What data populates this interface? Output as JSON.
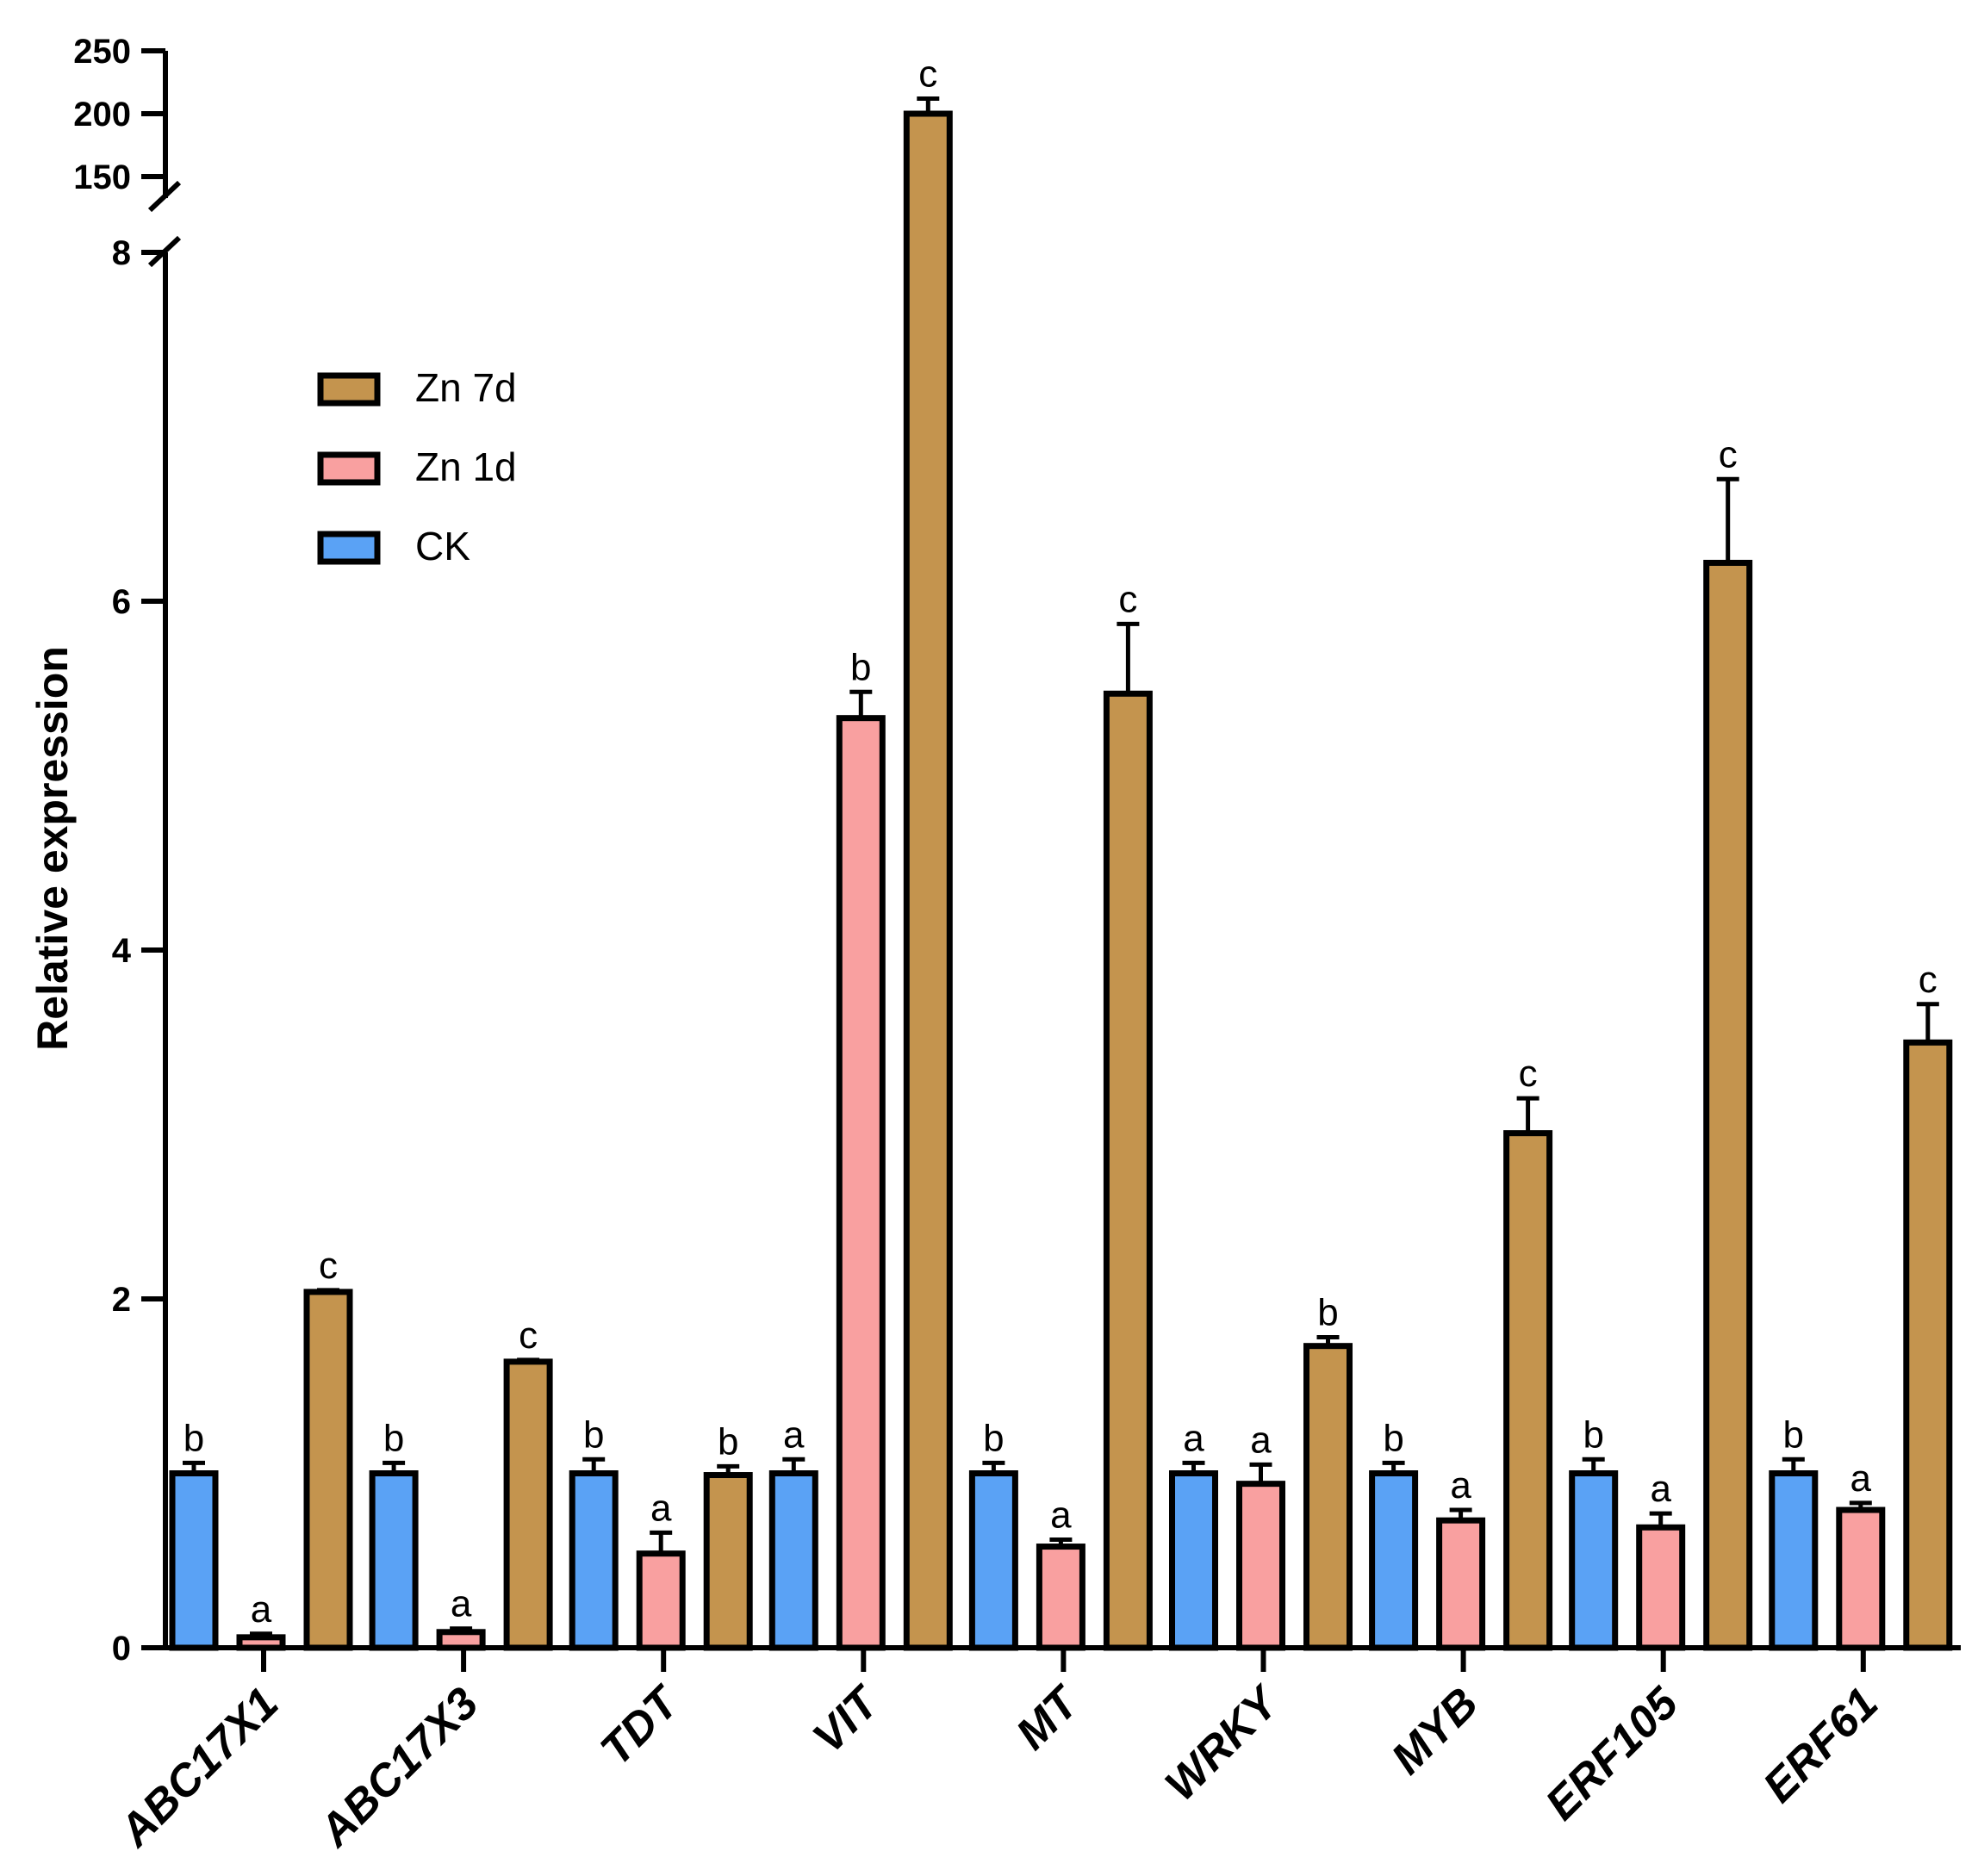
{
  "chart_data": {
    "type": "bar",
    "ylabel": "Relative expression",
    "xlabel": "",
    "categories": [
      "ABC17X1",
      "ABC17X3",
      "TDT",
      "VIT",
      "MT",
      "WRKY",
      "MYB",
      "ERF105",
      "ERF61"
    ],
    "series": [
      {
        "name": "CK",
        "color": "#5aa2f5",
        "values": [
          1.0,
          1.0,
          1.0,
          1.0,
          1.0,
          1.0,
          1.0,
          1.0,
          1.0
        ],
        "errors": [
          0.06,
          0.06,
          0.08,
          0.08,
          0.06,
          0.06,
          0.06,
          0.08,
          0.08
        ],
        "letters": [
          "b",
          "b",
          "b",
          "a",
          "b",
          "a",
          "b",
          "b",
          "b"
        ]
      },
      {
        "name": "Zn 1d",
        "color": "#f9a0a0",
        "values": [
          0.06,
          0.09,
          0.54,
          5.33,
          0.58,
          0.94,
          0.73,
          0.69,
          0.79
        ],
        "errors": [
          0.02,
          0.02,
          0.12,
          0.15,
          0.04,
          0.11,
          0.06,
          0.08,
          0.04
        ],
        "letters": [
          "a",
          "a",
          "a",
          "b",
          "a",
          "a",
          "a",
          "a",
          "a"
        ]
      },
      {
        "name": "Zn 7d",
        "color": "#c4944e",
        "values": [
          2.04,
          1.64,
          0.99,
          200,
          5.47,
          1.73,
          2.95,
          6.22,
          3.47
        ],
        "errors": [
          0.01,
          0.01,
          0.05,
          12,
          0.4,
          0.05,
          0.2,
          0.48,
          0.22
        ],
        "letters": [
          "c",
          "c",
          "b",
          "c",
          "c",
          "b",
          "c",
          "c",
          "c"
        ]
      }
    ],
    "y_axis": {
      "lower_range": [
        0,
        8
      ],
      "lower_ticks": [
        "0",
        "2",
        "4",
        "6",
        "8"
      ],
      "upper_range": [
        150,
        250
      ],
      "upper_ticks": [
        "150",
        "200",
        "250"
      ],
      "broken": true
    },
    "legend": {
      "placement": "top-left",
      "order": [
        "Zn 7d",
        "Zn 1d",
        "CK"
      ]
    }
  }
}
